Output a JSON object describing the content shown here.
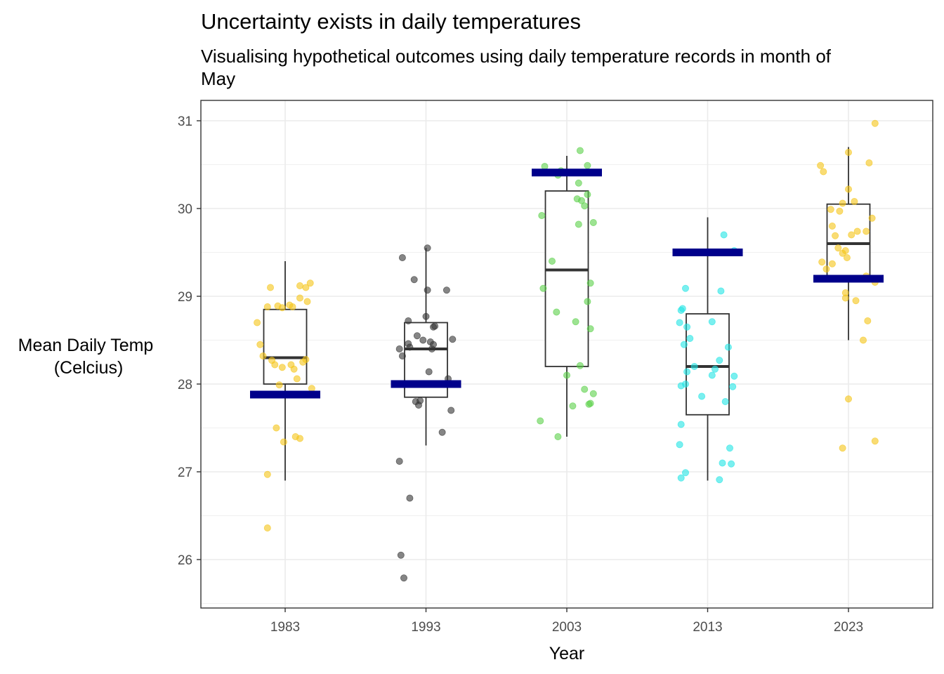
{
  "chart_data": {
    "type": "box-jitter",
    "title": "Uncertainty exists in daily temperatures",
    "subtitle": "Visualising hypothetical outcomes using daily temperature records in month of May",
    "xlabel": "Year",
    "ylabel": [
      "Mean Daily Temp",
      "(Celcius)"
    ],
    "ylim": [
      25.5,
      31.2
    ],
    "yticks": [
      26,
      27,
      28,
      29,
      30,
      31
    ],
    "grid": true,
    "categories": [
      "1983",
      "1993",
      "2003",
      "2013",
      "2023"
    ],
    "colors": {
      "1983": "#F5C518",
      "1993": "#333333",
      "2003": "#5BD14A",
      "2013": "#22E5E5",
      "2023": "#F5C518",
      "outcome_bar": "#00008B",
      "box": "#333333"
    },
    "boxes": [
      {
        "category": "1983",
        "whisker_low": 26.9,
        "q1": 28.0,
        "median": 28.3,
        "q3": 28.85,
        "whisker_high": 29.4
      },
      {
        "category": "1993",
        "whisker_low": 27.3,
        "q1": 27.85,
        "median": 28.4,
        "q3": 28.7,
        "whisker_high": 29.55
      },
      {
        "category": "2003",
        "whisker_low": 27.4,
        "q1": 28.2,
        "median": 29.3,
        "q3": 30.2,
        "whisker_high": 30.6
      },
      {
        "category": "2013",
        "whisker_low": 26.9,
        "q1": 27.65,
        "median": 28.2,
        "q3": 28.8,
        "whisker_high": 29.9
      },
      {
        "category": "2023",
        "whisker_low": 28.5,
        "q1": 29.2,
        "median": 29.6,
        "q3": 30.05,
        "whisker_high": 30.7
      }
    ],
    "hypothetical_outcome": [
      {
        "category": "1983",
        "value": 27.88
      },
      {
        "category": "1993",
        "value": 28.0
      },
      {
        "category": "2003",
        "value": 30.41
      },
      {
        "category": "2013",
        "value": 29.5
      },
      {
        "category": "2023",
        "value": 29.2
      }
    ],
    "points": {
      "1983": [
        [
          -0.1,
          29.1
        ],
        [
          -0.12,
          28.88
        ],
        [
          -0.19,
          28.7
        ],
        [
          -0.17,
          28.45
        ],
        [
          -0.15,
          28.32
        ],
        [
          -0.07,
          28.22
        ],
        [
          -0.02,
          28.19
        ],
        [
          0.04,
          28.22
        ],
        [
          0.06,
          28.17
        ],
        [
          0.12,
          28.25
        ],
        [
          0.14,
          28.28
        ],
        [
          0.08,
          28.06
        ],
        [
          -0.05,
          28.89
        ],
        [
          -0.02,
          28.87
        ],
        [
          0.03,
          28.9
        ],
        [
          0.05,
          28.88
        ],
        [
          0.1,
          29.12
        ],
        [
          0.14,
          29.1
        ],
        [
          0.17,
          29.15
        ],
        [
          0.15,
          28.94
        ],
        [
          0.1,
          28.98
        ],
        [
          0.18,
          27.95
        ],
        [
          -0.04,
          27.99
        ],
        [
          -0.06,
          27.5
        ],
        [
          0.07,
          27.4
        ],
        [
          0.1,
          27.38
        ],
        [
          -0.01,
          27.34
        ],
        [
          -0.12,
          26.97
        ],
        [
          -0.12,
          26.36
        ],
        [
          -0.09,
          28.27
        ]
      ],
      "1993": [
        [
          -0.16,
          29.44
        ],
        [
          0.01,
          29.55
        ],
        [
          -0.08,
          29.19
        ],
        [
          0.01,
          29.07
        ],
        [
          0.14,
          29.07
        ],
        [
          -0.12,
          28.72
        ],
        [
          -0.06,
          28.55
        ],
        [
          0.0,
          28.77
        ],
        [
          0.06,
          28.66
        ],
        [
          0.05,
          28.65
        ],
        [
          0.03,
          28.48
        ],
        [
          0.05,
          28.45
        ],
        [
          -0.12,
          28.46
        ],
        [
          -0.18,
          28.4
        ],
        [
          -0.16,
          28.32
        ],
        [
          -0.11,
          28.42
        ],
        [
          -0.02,
          28.5
        ],
        [
          0.04,
          28.4
        ],
        [
          0.18,
          28.51
        ],
        [
          0.02,
          28.14
        ],
        [
          0.15,
          28.06
        ],
        [
          -0.07,
          27.8
        ],
        [
          -0.05,
          27.76
        ],
        [
          -0.04,
          27.81
        ],
        [
          0.17,
          27.7
        ],
        [
          0.11,
          27.45
        ],
        [
          -0.18,
          27.12
        ],
        [
          -0.11,
          26.7
        ],
        [
          -0.17,
          26.05
        ],
        [
          -0.15,
          25.79
        ]
      ],
      "2003": [
        [
          -0.15,
          30.48
        ],
        [
          -0.04,
          30.43
        ],
        [
          0.09,
          30.66
        ],
        [
          0.14,
          30.49
        ],
        [
          0.08,
          30.29
        ],
        [
          -0.06,
          30.38
        ],
        [
          0.14,
          30.16
        ],
        [
          0.12,
          30.03
        ],
        [
          0.1,
          30.09
        ],
        [
          0.07,
          30.11
        ],
        [
          -0.17,
          29.92
        ],
        [
          0.08,
          29.82
        ],
        [
          0.18,
          29.84
        ],
        [
          -0.1,
          29.4
        ],
        [
          0.16,
          29.15
        ],
        [
          -0.16,
          29.09
        ],
        [
          0.14,
          28.94
        ],
        [
          -0.07,
          28.82
        ],
        [
          0.06,
          28.71
        ],
        [
          0.16,
          28.63
        ],
        [
          0.09,
          28.21
        ],
        [
          0.0,
          28.1
        ],
        [
          0.12,
          27.94
        ],
        [
          0.18,
          27.89
        ],
        [
          0.16,
          27.78
        ],
        [
          0.15,
          27.77
        ],
        [
          0.04,
          27.75
        ],
        [
          -0.18,
          27.58
        ],
        [
          -0.06,
          27.4
        ]
      ],
      "2013": [
        [
          0.11,
          29.7
        ],
        [
          0.18,
          29.52
        ],
        [
          -0.15,
          29.09
        ],
        [
          0.09,
          29.06
        ],
        [
          -0.17,
          28.86
        ],
        [
          -0.18,
          28.84
        ],
        [
          -0.19,
          28.7
        ],
        [
          0.03,
          28.71
        ],
        [
          -0.14,
          28.65
        ],
        [
          -0.12,
          28.52
        ],
        [
          -0.16,
          28.45
        ],
        [
          0.14,
          28.42
        ],
        [
          0.08,
          28.27
        ],
        [
          -0.09,
          28.2
        ],
        [
          -0.14,
          28.14
        ],
        [
          0.03,
          28.1
        ],
        [
          0.05,
          28.17
        ],
        [
          0.18,
          28.09
        ],
        [
          -0.15,
          28.0
        ],
        [
          -0.18,
          27.98
        ],
        [
          0.17,
          27.97
        ],
        [
          -0.04,
          27.86
        ],
        [
          0.12,
          27.8
        ],
        [
          -0.18,
          27.54
        ],
        [
          -0.19,
          27.31
        ],
        [
          0.15,
          27.27
        ],
        [
          0.1,
          27.1
        ],
        [
          0.16,
          27.09
        ],
        [
          -0.15,
          26.99
        ],
        [
          -0.18,
          26.93
        ],
        [
          0.08,
          26.91
        ]
      ],
      "2023": [
        [
          -0.19,
          30.49
        ],
        [
          -0.17,
          30.42
        ],
        [
          0.0,
          30.64
        ],
        [
          0.14,
          30.52
        ],
        [
          0.18,
          30.97
        ],
        [
          0.0,
          30.22
        ],
        [
          -0.04,
          30.06
        ],
        [
          0.04,
          30.08
        ],
        [
          -0.12,
          29.99
        ],
        [
          -0.06,
          29.97
        ],
        [
          0.16,
          29.89
        ],
        [
          -0.11,
          29.8
        ],
        [
          0.06,
          29.74
        ],
        [
          0.12,
          29.74
        ],
        [
          -0.09,
          29.69
        ],
        [
          0.02,
          29.7
        ],
        [
          -0.07,
          29.55
        ],
        [
          -0.02,
          29.52
        ],
        [
          -0.04,
          29.49
        ],
        [
          -0.01,
          29.44
        ],
        [
          -0.18,
          29.39
        ],
        [
          -0.15,
          29.31
        ],
        [
          -0.11,
          29.37
        ],
        [
          0.12,
          29.23
        ],
        [
          0.18,
          29.16
        ],
        [
          -0.02,
          29.04
        ],
        [
          -0.02,
          28.98
        ],
        [
          0.05,
          28.95
        ],
        [
          0.13,
          28.72
        ],
        [
          0.1,
          28.5
        ],
        [
          0.0,
          27.83
        ],
        [
          -0.04,
          27.27
        ],
        [
          0.18,
          27.35
        ]
      ]
    }
  }
}
